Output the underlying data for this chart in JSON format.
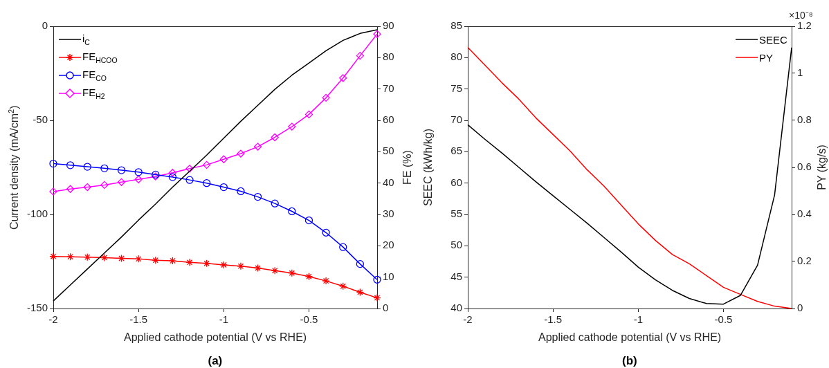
{
  "chart_data": [
    {
      "type": "line",
      "xlabel": "Applied cathode potential (V vs RHE)",
      "ylabel": "Current density (mA/cm$^{2}$)",
      "y2label": "FE (%)",
      "annotations": [
        "(a)"
      ],
      "x": [
        -2,
        -1.9,
        -1.8,
        -1.7,
        -1.6,
        -1.5,
        -1.4,
        -1.3,
        -1.2,
        -1.1,
        -1,
        -0.9,
        -0.8,
        -0.7,
        -0.6,
        -0.5,
        -0.4,
        -0.3,
        -0.2,
        -0.1
      ],
      "series": [
        {
          "name": "i$_{C}$",
          "color": "#000000",
          "marker": "none",
          "values": [
            -146,
            -137.5,
            -129,
            -120.5,
            -112,
            -103,
            -94.5,
            -85.5,
            -77,
            -68.5,
            -59.5,
            -50.5,
            -42,
            -33.5,
            -26,
            -19.5,
            -13,
            -7.5,
            -3.8,
            -1.8
          ]
        },
        {
          "name": "FE$_{HCOO}$",
          "color": "#ff0000",
          "marker": "cross",
          "axis": "y2",
          "values": [
            16.6,
            16.5,
            16.4,
            16.2,
            16,
            15.8,
            15.4,
            15.2,
            14.7,
            14.4,
            13.9,
            13.5,
            12.9,
            12.1,
            11.3,
            10.2,
            8.8,
            7.1,
            5.2,
            3.4
          ]
        },
        {
          "name": "FE$_{CO}$",
          "color": "#0000ff",
          "marker": "circle",
          "axis": "y2",
          "values": [
            46.2,
            45.7,
            45.2,
            44.7,
            44.1,
            43.5,
            42.7,
            41.9,
            41,
            40,
            38.7,
            37.4,
            35.6,
            33.5,
            31,
            28.1,
            24.2,
            19.6,
            14.2,
            9.2
          ]
        },
        {
          "name": "FE$_{H2}$",
          "color": "#ff00ff",
          "marker": "diamond",
          "axis": "y2",
          "values": [
            37.3,
            38.1,
            38.7,
            39.4,
            40.3,
            41.2,
            42.1,
            43.3,
            44.6,
            45.8,
            47.6,
            49.4,
            51.6,
            54.6,
            58,
            61.9,
            67.2,
            73.5,
            80.6,
            87.5
          ]
        }
      ],
      "xlim": [
        -2,
        -0.1
      ],
      "xticks": [
        -2,
        -1.5,
        -1,
        -0.5
      ],
      "ylim": [
        -150,
        0
      ],
      "yticks": [
        -150,
        -100,
        -50,
        0
      ],
      "y2lim": [
        0,
        90
      ],
      "y2ticks": [
        0,
        10,
        20,
        30,
        40,
        50,
        60,
        70,
        80,
        90
      ],
      "grid": false,
      "legend": "top left",
      "line_style": "solid"
    },
    {
      "type": "line",
      "xlabel": "Applied cathode potential (V vs RHE)",
      "ylabel": "SEEC (kWh/kg)",
      "y2label": "PY (kg/s)",
      "annotations": [
        "×10⁻⁸",
        "(b)"
      ],
      "x": [
        -2,
        -1.9,
        -1.8,
        -1.7,
        -1.6,
        -1.5,
        -1.4,
        -1.3,
        -1.2,
        -1.1,
        -1,
        -0.9,
        -0.8,
        -0.7,
        -0.6,
        -0.5,
        -0.4,
        -0.3,
        -0.2,
        -0.1
      ],
      "series": [
        {
          "name": "SEEC",
          "color": "#000000",
          "values": [
            69.3,
            67,
            64.8,
            62.5,
            60.2,
            58,
            55.8,
            53.6,
            51.3,
            49,
            46.6,
            44.6,
            42.9,
            41.6,
            40.8,
            40.7,
            42.1,
            46.9,
            58.1,
            81.6
          ]
        },
        {
          "name": "PY",
          "color": "#ff0000",
          "axis": "y2",
          "values": [
            1.11,
            1.035,
            0.96,
            0.89,
            0.81,
            0.74,
            0.67,
            0.59,
            0.52,
            0.44,
            0.36,
            0.29,
            0.23,
            0.19,
            0.14,
            0.09,
            0.06,
            0.03,
            0.01,
            0
          ]
        }
      ],
      "xlim": [
        -2,
        -0.1
      ],
      "xticks": [
        -2,
        -1.5,
        -1,
        -0.5
      ],
      "ylim": [
        40,
        85
      ],
      "yticks": [
        40,
        45,
        50,
        55,
        60,
        65,
        70,
        75,
        80,
        85
      ],
      "y2lim": [
        0,
        1.2
      ],
      "y2ticks": [
        0,
        0.2,
        0.4,
        0.6,
        0.8,
        1,
        1.2
      ],
      "grid": false,
      "legend": "top right",
      "marker": "none",
      "line_style": "solid"
    }
  ]
}
